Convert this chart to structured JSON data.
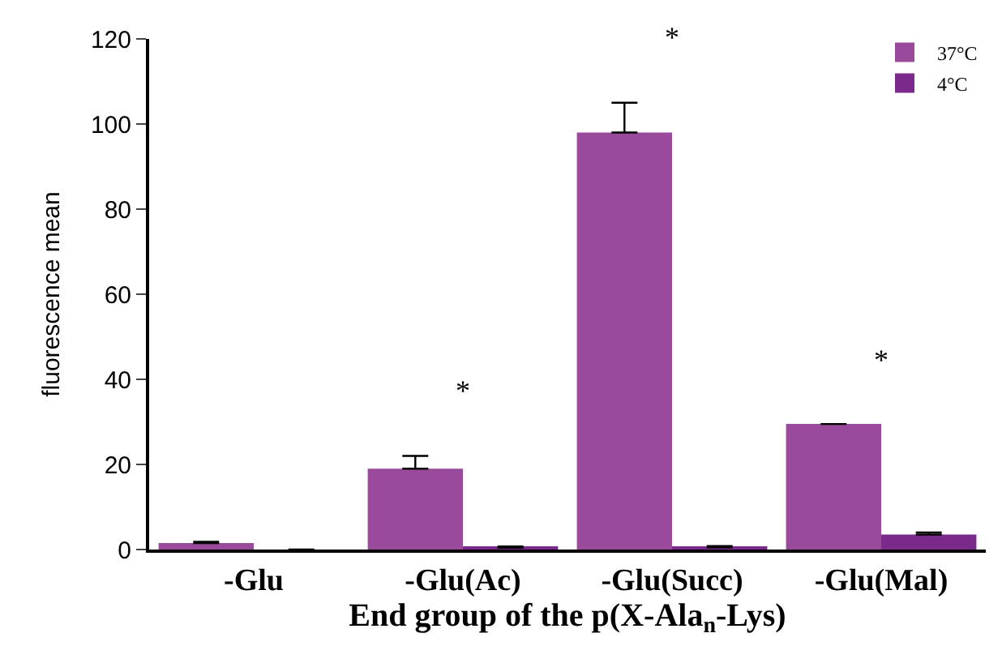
{
  "chart_data": {
    "type": "bar",
    "xlabel": "End group of the p(X-Ala$_{n}$-Lys)",
    "ylabel": "fluorescence mean",
    "categories": [
      "-Glu",
      "-Glu(Ac)",
      "-Glu(Succ)",
      "-Glu(Mal)"
    ],
    "series": [
      {
        "name": "37°C",
        "color": "#9a4a9a",
        "values": [
          1.5,
          19,
          98,
          29.5
        ],
        "errors": [
          0.3,
          3,
          7,
          null
        ]
      },
      {
        "name": "4°C",
        "color": "#7a2a8a",
        "values": [
          0,
          0.4,
          0.5,
          3.5
        ],
        "errors": [
          null,
          0.3,
          0.3,
          0.5
        ]
      }
    ],
    "ylim": [
      0,
      120
    ],
    "yticks": [
      0,
      20,
      40,
      60,
      80,
      100,
      120
    ],
    "grid": false,
    "legend": "top right",
    "annotations": [
      "*",
      "*",
      "*"
    ]
  }
}
